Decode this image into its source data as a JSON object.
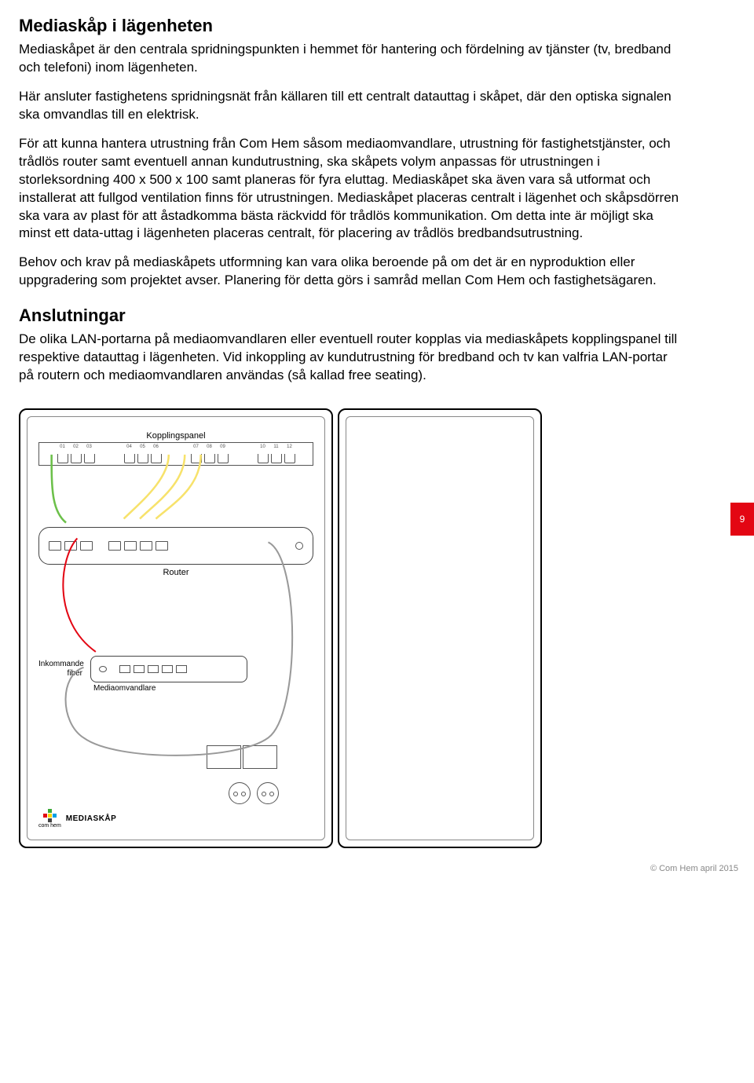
{
  "heading1": "Mediaskåp i lägenheten",
  "para1": "Mediaskåpet är den centrala spridningspunkten i hemmet för hantering och fördelning av tjänster (tv, bredband och telefoni) inom lägenheten.",
  "para2": "Här ansluter fastighetens spridningsnät från källaren till ett centralt datauttag i skåpet, där den optiska signalen ska omvandlas till en elektrisk.",
  "para3": "För att kunna hantera utrustning från Com Hem såsom mediaomvandlare, utrustning för fastighetstjänster, och trådlös router samt eventuell annan kundutrustning, ska skåpets volym anpassas för utrustningen i storleksordning 400 x 500 x 100 samt planeras för fyra eluttag. Mediaskåpet ska även vara så utformat och installerat att fullgod ventilation finns för utrustningen. Mediaskåpet placeras centralt i lägenhet och skåpsdörren ska vara av plast för att åstadkomma bästa räckvidd för trådlös kommunikation. Om detta inte är möjligt ska minst ett data-uttag i lägenheten placeras centralt, för placering av trådlös bredbandsutrustning.",
  "para4": "Behov och krav på mediaskåpets utformning kan vara olika beroende på om det är en nyproduktion eller uppgradering som projektet avser. Planering för detta görs i samråd mellan Com Hem och fastighetsägaren.",
  "heading2": "Anslutningar",
  "para5": "De olika LAN-portarna på mediaomvandlaren eller eventuell router kopplas via mediaskåpets kopplingspanel till respektive datauttag i lägenheten. Vid inkoppling av kundutrustning för bredband och tv kan valfria LAN-portar på routern och mediaomvandlaren användas (så kallad free seating).",
  "pageNum": "9",
  "diagram": {
    "patch_panel_label": "Kopplingspanel",
    "router_label": "Router",
    "fiber_label_l1": "Inkommande",
    "fiber_label_l2": "fiber",
    "mediaconv_label": "Mediaomvandlare",
    "mediaskap_label": "MEDIASKÅP",
    "comhem_label": "com hem",
    "port_numbers": [
      "01",
      "02",
      "03",
      "04",
      "05",
      "06",
      "07",
      "08",
      "09",
      "10",
      "11",
      "12"
    ],
    "logo_colors": [
      "#ffffff",
      "#3aaa35",
      "#ffffff",
      "#e30613",
      "#ffd500",
      "#009fe3",
      "#ffffff",
      "#444444",
      "#ffffff"
    ],
    "cable_green": "#6cc04a",
    "cable_yellow": "#f7e26b",
    "cable_red": "#e30613",
    "cable_gray": "#999999"
  },
  "copyright": "© Com Hem april 2015"
}
